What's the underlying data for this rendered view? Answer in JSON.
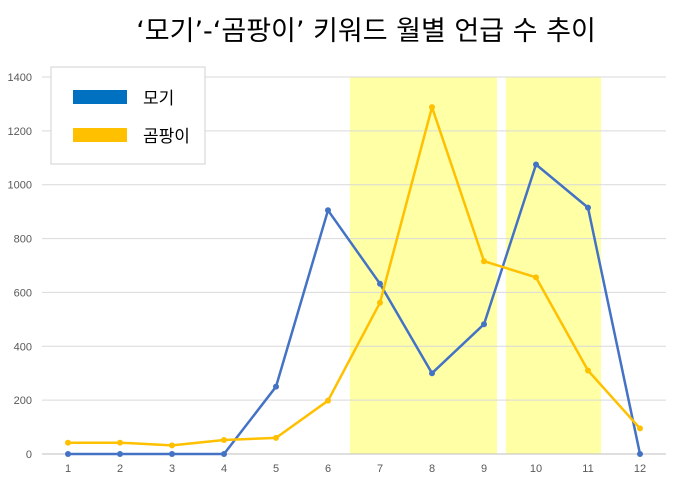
{
  "chart_data": {
    "type": "line",
    "title": "‘모기’-‘곰팡이’ 키워드 월별 언급 수 추이",
    "xlabel": "",
    "ylabel": "",
    "categories": [
      "1",
      "2",
      "3",
      "4",
      "5",
      "6",
      "7",
      "8",
      "9",
      "10",
      "11",
      "12"
    ],
    "ylim": [
      0,
      1400
    ],
    "yticks": [
      0,
      200,
      400,
      600,
      800,
      1000,
      1200,
      1400
    ],
    "grid": true,
    "legend_position": "top-left",
    "highlight_ranges": [
      [
        "7",
        "9"
      ],
      [
        "10",
        "11"
      ]
    ],
    "highlight_color": "#ffffa6",
    "series": [
      {
        "name": "모기",
        "color": "#4472c4",
        "legend_color": "#0070c0",
        "values": [
          0,
          0,
          0,
          0,
          250,
          905,
          632,
          300,
          482,
          1075,
          915,
          0
        ]
      },
      {
        "name": "곰팡이",
        "color": "#ffc000",
        "legend_color": "#ffc000",
        "values": [
          42,
          42,
          32,
          52,
          60,
          198,
          562,
          1288,
          716,
          656,
          310,
          95
        ]
      }
    ]
  }
}
